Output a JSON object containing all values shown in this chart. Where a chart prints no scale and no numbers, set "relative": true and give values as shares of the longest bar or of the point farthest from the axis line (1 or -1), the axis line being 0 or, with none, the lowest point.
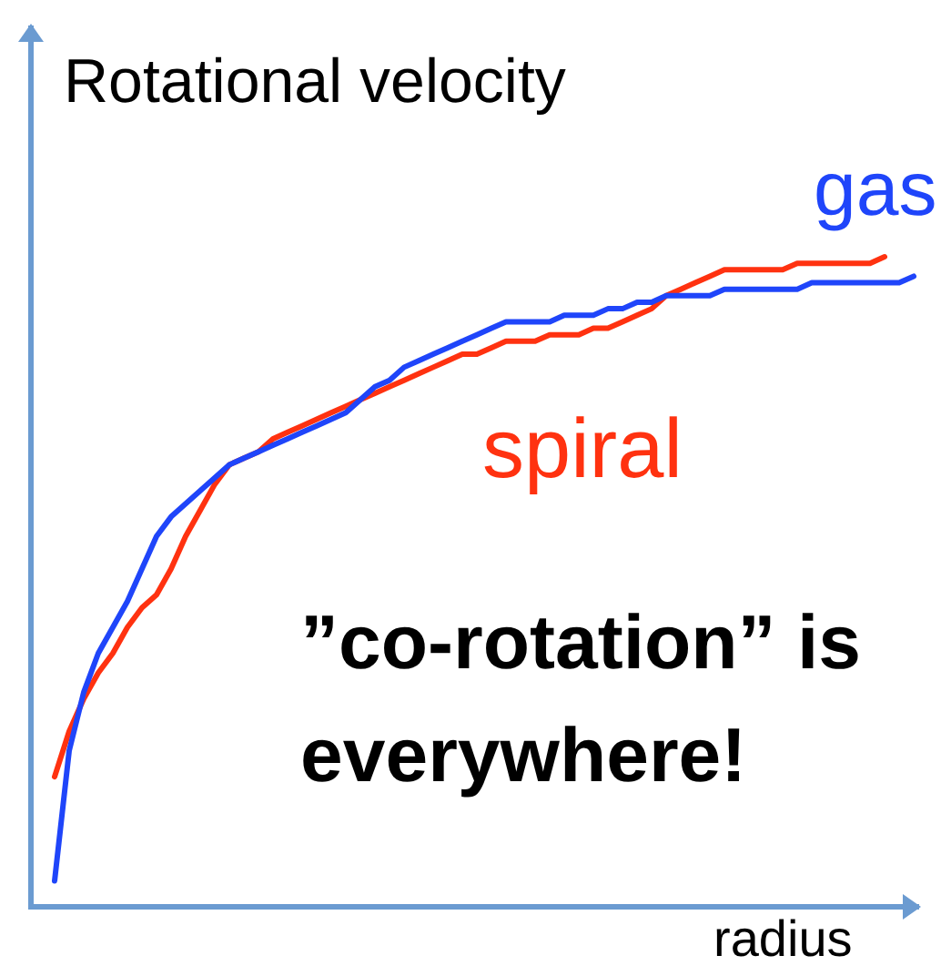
{
  "chart_data": {
    "type": "line",
    "ylabel": "Rotational velocity",
    "xlabel": "radius",
    "relative": true,
    "categories": [
      null,
      null,
      null,
      null,
      null,
      null,
      null,
      null,
      null,
      null,
      null,
      null,
      null,
      null,
      null,
      null,
      null,
      null,
      null,
      null,
      null,
      null,
      null,
      null,
      null,
      null,
      null,
      null,
      null,
      null,
      null,
      null,
      null,
      null,
      null,
      null,
      null,
      null,
      null,
      null,
      null,
      null,
      null,
      null,
      null,
      null,
      null,
      null,
      null,
      null,
      null,
      null,
      null,
      null,
      null,
      null,
      null,
      null,
      null,
      null
    ],
    "series": [
      {
        "name": "gas",
        "color": "#1f45fa",
        "values": [
          0.04,
          0.24,
          0.33,
          0.39,
          0.43,
          0.47,
          0.52,
          0.57,
          0.6,
          0.62,
          0.64,
          0.66,
          0.68,
          0.69,
          0.7,
          0.71,
          0.72,
          0.73,
          0.74,
          0.75,
          0.76,
          0.78,
          0.8,
          0.81,
          0.83,
          0.84,
          0.85,
          0.86,
          0.87,
          0.88,
          0.89,
          0.9,
          0.9,
          0.9,
          0.9,
          0.91,
          0.91,
          0.91,
          0.92,
          0.92,
          0.93,
          0.93,
          0.94,
          0.94,
          0.94,
          0.94,
          0.95,
          0.95,
          0.95,
          0.95,
          0.95,
          0.95,
          0.96,
          0.96,
          0.96,
          0.96,
          0.96,
          0.96,
          0.96,
          0.97
        ]
      },
      {
        "name": "spiral",
        "color": "#ff3210",
        "values": [
          0.2,
          0.27,
          0.32,
          0.36,
          0.39,
          0.43,
          0.46,
          0.48,
          0.52,
          0.57,
          0.61,
          0.65,
          0.68,
          0.69,
          0.7,
          0.72,
          0.73,
          0.74,
          0.75,
          0.76,
          0.77,
          0.78,
          0.79,
          0.8,
          0.81,
          0.82,
          0.83,
          0.84,
          0.85,
          0.85,
          0.86,
          0.87,
          0.87,
          0.87,
          0.88,
          0.88,
          0.88,
          0.89,
          0.89,
          0.9,
          0.91,
          0.92,
          0.94,
          0.95,
          0.96,
          0.97,
          0.98,
          0.98,
          0.98,
          0.98,
          0.98,
          0.99,
          0.99,
          0.99,
          0.99,
          0.99,
          0.99,
          1.0,
          null,
          null
        ]
      }
    ],
    "annotations": [
      "”co-rotation” is everywhere!"
    ]
  }
}
